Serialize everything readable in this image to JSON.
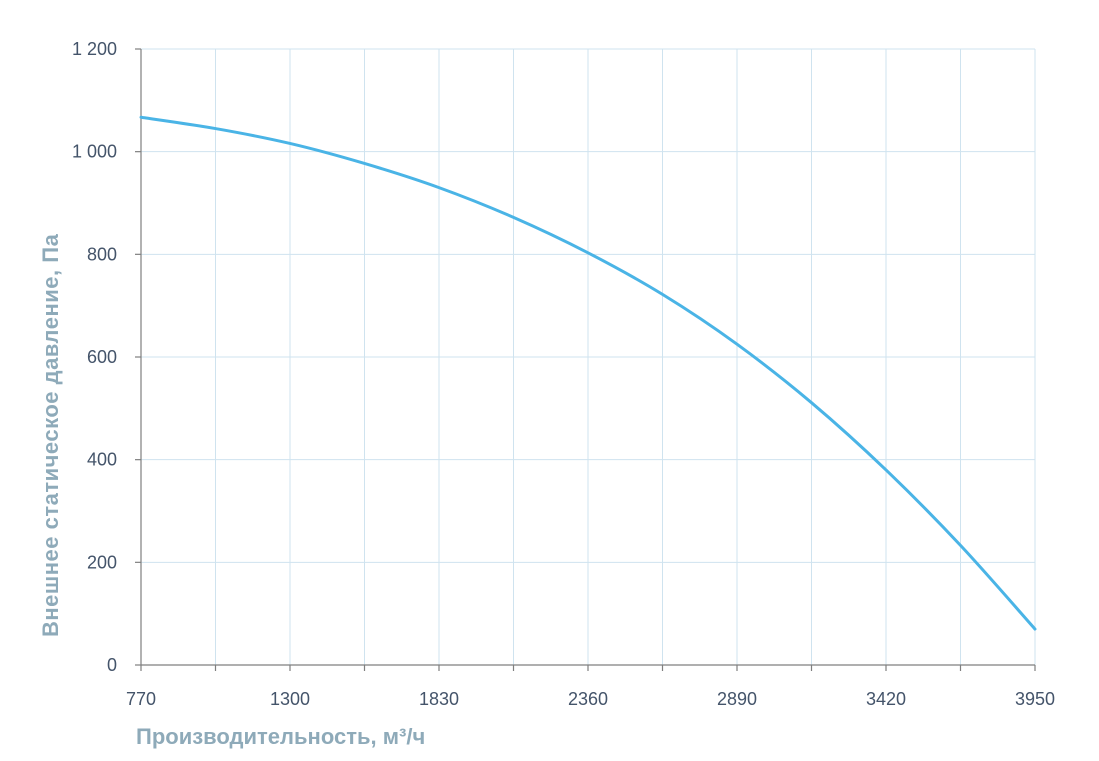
{
  "chart_data": {
    "type": "line",
    "title": "",
    "xlabel": "Производительность, м³/ч",
    "ylabel": "Внешнее статическое давление, Па",
    "x_ticks": [
      "770",
      "1300",
      "1830",
      "2360",
      "2890",
      "3420",
      "3950"
    ],
    "y_ticks": [
      "0",
      "200",
      "400",
      "600",
      "800",
      "1 000",
      "1 200"
    ],
    "xlim": [
      770,
      3950
    ],
    "ylim": [
      0,
      1200
    ],
    "grid": true,
    "x_minor_grid_step": 265,
    "series": [
      {
        "color": "#4ab4e6",
        "x": [
          770,
          1035,
          1300,
          1565,
          1830,
          2095,
          2360,
          2625,
          2890,
          3155,
          3420,
          3685,
          3950
        ],
        "y": [
          1067,
          1045,
          1016,
          977,
          930,
          872,
          803,
          722,
          625,
          511,
          380,
          233,
          70
        ]
      }
    ],
    "colors": {
      "grid": "#cfe3ef",
      "axis": "#7f7f7f",
      "tick_label": "#44546a",
      "axis_title": "#8eaab9"
    }
  }
}
